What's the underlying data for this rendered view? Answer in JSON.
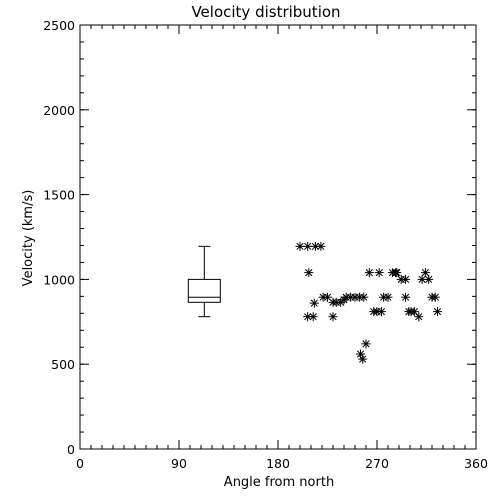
{
  "chart_data": {
    "type": "scatter",
    "title": "Velocity distribution",
    "xlabel": "Angle from north",
    "ylabel": "Velocity (km/s)",
    "xlim": [
      0,
      360
    ],
    "ylim": [
      0,
      2500
    ],
    "x_ticks": [
      0,
      90,
      180,
      270,
      360
    ],
    "y_ticks": [
      0,
      500,
      1000,
      1500,
      2000,
      2500
    ],
    "x_minor_step": 10,
    "y_minor_step": 100,
    "grid": false,
    "legend": "none",
    "marker": "asterisk",
    "boxplot": {
      "x": 113,
      "min": 780,
      "q1": 865,
      "median": 895,
      "q3": 1000,
      "max": 1195
    },
    "series": [
      {
        "points": [
          [
            200,
            1195
          ],
          [
            207,
            1195
          ],
          [
            214,
            1195
          ],
          [
            219,
            1195
          ],
          [
            208,
            1040
          ],
          [
            207,
            780
          ],
          [
            212,
            780
          ],
          [
            230,
            780
          ],
          [
            213,
            860
          ],
          [
            221,
            895
          ],
          [
            225,
            895
          ],
          [
            230,
            865
          ],
          [
            233,
            865
          ],
          [
            237,
            865
          ],
          [
            240,
            880
          ],
          [
            242,
            895
          ],
          [
            246,
            895
          ],
          [
            250,
            895
          ],
          [
            254,
            895
          ],
          [
            258,
            895
          ],
          [
            255,
            560
          ],
          [
            257,
            530
          ],
          [
            260,
            620
          ],
          [
            263,
            1040
          ],
          [
            267,
            810
          ],
          [
            270,
            810
          ],
          [
            272,
            1040
          ],
          [
            274,
            810
          ],
          [
            276,
            895
          ],
          [
            280,
            895
          ],
          [
            284,
            1040
          ],
          [
            288,
            1040
          ],
          [
            292,
            1000
          ],
          [
            296,
            895
          ],
          [
            299,
            810
          ],
          [
            301,
            810
          ],
          [
            304,
            810
          ],
          [
            308,
            780
          ],
          [
            311,
            1000
          ],
          [
            314,
            1040
          ],
          [
            317,
            1000
          ],
          [
            320,
            895
          ],
          [
            323,
            895
          ],
          [
            325,
            810
          ],
          [
            296,
            1000
          ],
          [
            287,
            1040
          ]
        ]
      }
    ]
  }
}
